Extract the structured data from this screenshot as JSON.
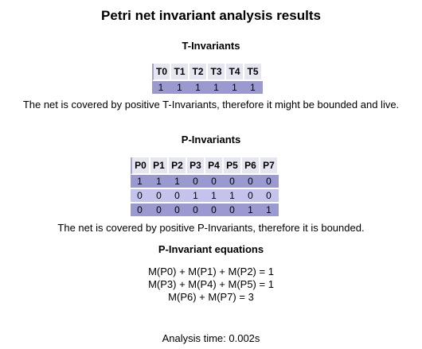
{
  "title": "Petri net invariant analysis results",
  "t_invariants": {
    "heading": "T-Invariants",
    "headers": [
      "T0",
      "T1",
      "T2",
      "T3",
      "T4",
      "T5"
    ],
    "rows": [
      [
        "1",
        "1",
        "1",
        "1",
        "1",
        "1"
      ]
    ],
    "note": "The net is covered by positive T-Invariants, therefore it might be bounded and live."
  },
  "p_invariants": {
    "heading": "P-Invariants",
    "headers": [
      "P0",
      "P1",
      "P2",
      "P3",
      "P4",
      "P5",
      "P6",
      "P7"
    ],
    "rows": [
      [
        "1",
        "1",
        "1",
        "0",
        "0",
        "0",
        "0",
        "0"
      ],
      [
        "0",
        "0",
        "0",
        "1",
        "1",
        "1",
        "0",
        "0"
      ],
      [
        "0",
        "0",
        "0",
        "0",
        "0",
        "0",
        "1",
        "1"
      ]
    ],
    "note": "The net is covered by positive P-Invariants, therefore it is bounded."
  },
  "equations": {
    "heading": "P-Invariant equations",
    "lines": [
      "M(P0) + M(P1) + M(P2) = 1",
      "M(P3) + M(P4) + M(P5) = 1",
      "M(P6) + M(P7) = 3"
    ]
  },
  "analysis_time": "Analysis time: 0.002s",
  "colors": {
    "header_bg": "#e6e6f0",
    "row_dark": "#9a9ad0",
    "row_light": "#c3c3ec"
  }
}
